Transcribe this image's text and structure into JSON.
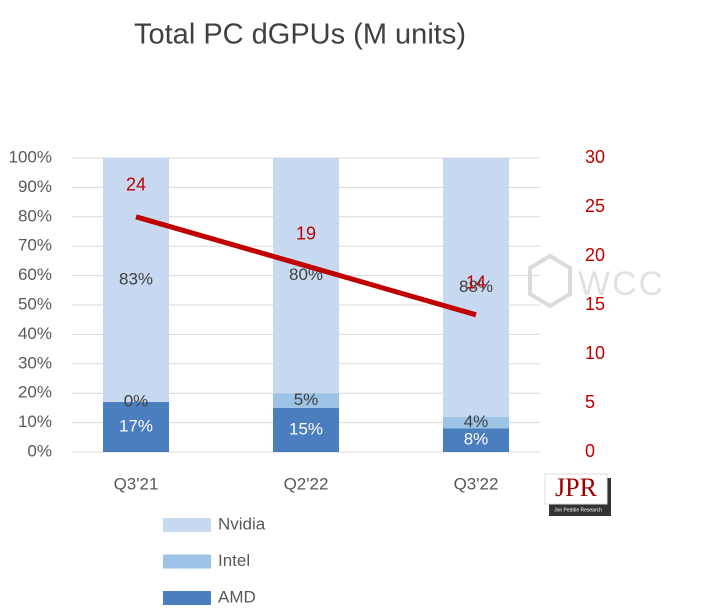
{
  "chart_data": {
    "type": "bar",
    "stacked": true,
    "title": "Total PC dGPUs (M units)",
    "categories": [
      "Q3'21",
      "Q2'22",
      "Q3'22"
    ],
    "series": [
      {
        "name": "Nvidia",
        "color": "#c6d9f0",
        "label_color": "#404040",
        "values": [
          83,
          80,
          88
        ],
        "value_labels": [
          "83%",
          "80%",
          "88%"
        ]
      },
      {
        "name": "Intel",
        "color": "#9dc3e6",
        "label_color": "#404040",
        "values": [
          0,
          5,
          4
        ],
        "value_labels": [
          "0%",
          "5%",
          "4%"
        ]
      },
      {
        "name": "AMD",
        "color": "#4a7ebf",
        "label_color": "#ffffff",
        "values": [
          17,
          15,
          8
        ],
        "value_labels": [
          "17%",
          "15%",
          "8%"
        ]
      },
      {
        "type": "line",
        "axis": "y2",
        "color": "#c00000",
        "values": [
          24,
          19,
          14
        ]
      }
    ],
    "ylim": [
      0,
      100
    ],
    "yticks": [
      {
        "value": 0,
        "label": "0%"
      },
      {
        "value": 10,
        "label": "10%"
      },
      {
        "value": 20,
        "label": "20%"
      },
      {
        "value": 30,
        "label": "30%"
      },
      {
        "value": 40,
        "label": "40%"
      },
      {
        "value": 50,
        "label": "50%"
      },
      {
        "value": 60,
        "label": "60%"
      },
      {
        "value": 70,
        "label": "70%"
      },
      {
        "value": 80,
        "label": "80%"
      },
      {
        "value": 90,
        "label": "90%"
      },
      {
        "value": 100,
        "label": "100%"
      }
    ],
    "y2lim": [
      0,
      30
    ],
    "y2ticks": [
      0,
      5,
      10,
      15,
      20,
      25,
      30
    ],
    "y2_color": "#c00000",
    "grid": true,
    "legend": "bottom",
    "logo": {
      "text": "JPR",
      "subtitle": "Jon Peddie Research"
    },
    "watermark": "WCC"
  }
}
